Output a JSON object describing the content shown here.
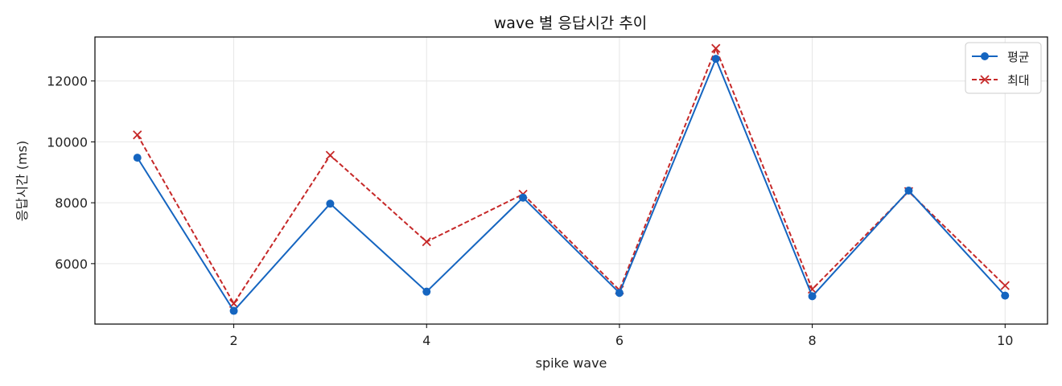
{
  "chart_data": {
    "type": "line",
    "title": "wave 별 응답시간 추이",
    "xlabel": "spike wave",
    "ylabel": "응답시간 (ms)",
    "x": [
      1,
      2,
      3,
      4,
      5,
      6,
      7,
      8,
      9,
      10
    ],
    "xticks": [
      2,
      4,
      6,
      8,
      10
    ],
    "yticks": [
      6000,
      8000,
      10000,
      12000
    ],
    "xlim": [
      0.56,
      10.44
    ],
    "ylim": [
      4015,
      13445
    ],
    "grid": true,
    "legend_position": "top-right",
    "series": [
      {
        "name": "평균",
        "color": "#1565c0",
        "marker": "circle",
        "line_style": "solid",
        "values": [
          9480,
          4450,
          7970,
          5080,
          8170,
          5040,
          12730,
          4930,
          8400,
          4950
        ]
      },
      {
        "name": "최대",
        "color": "#c62828",
        "marker": "x",
        "line_style": "dashed",
        "values": [
          10230,
          4690,
          9560,
          6720,
          8280,
          5130,
          13070,
          5160,
          8370,
          5280
        ]
      }
    ]
  }
}
